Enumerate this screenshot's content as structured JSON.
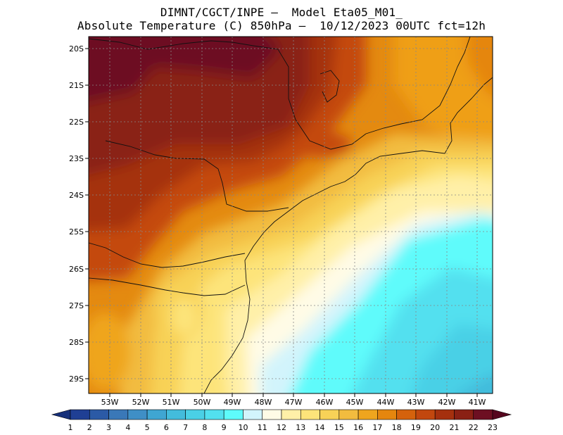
{
  "header": {
    "title_line1": "DIMNT/CGCT/INPE –  Model Eta05_M01_",
    "title_line2": "Absolute Temperature (C) 850hPa –  10/12/2023 00UTC fct=12h"
  },
  "map": {
    "lat_labels": [
      "20S",
      "21S",
      "22S",
      "23S",
      "24S",
      "25S",
      "26S",
      "27S",
      "28S",
      "29S"
    ],
    "lon_labels": [
      "53W",
      "52W",
      "51W",
      "50W",
      "49W",
      "48W",
      "47W",
      "46W",
      "45W",
      "44W",
      "43W",
      "42W",
      "41W"
    ]
  },
  "colorbar": {
    "labels": [
      "1",
      "2",
      "3",
      "4",
      "5",
      "6",
      "7",
      "8",
      "9",
      "10",
      "11",
      "12",
      "13",
      "14",
      "15",
      "16",
      "17",
      "18",
      "19",
      "20",
      "21",
      "22",
      "23"
    ],
    "colors": [
      "#1f3f94",
      "#2b5aa6",
      "#3a78b8",
      "#3f8fc6",
      "#3fa6d2",
      "#43bcdc",
      "#4ad0e6",
      "#52e0ef",
      "#5efbfb",
      "#d2f4fc",
      "#fffbe6",
      "#fff0a8",
      "#fde47a",
      "#f8d257",
      "#f2bc3f",
      "#efa51e",
      "#e5860e",
      "#d5620c",
      "#c2470e",
      "#a5300e",
      "#8a2014",
      "#6d0f22"
    ],
    "tip_low_color": "#16307a",
    "tip_high_color": "#56061e"
  }
}
